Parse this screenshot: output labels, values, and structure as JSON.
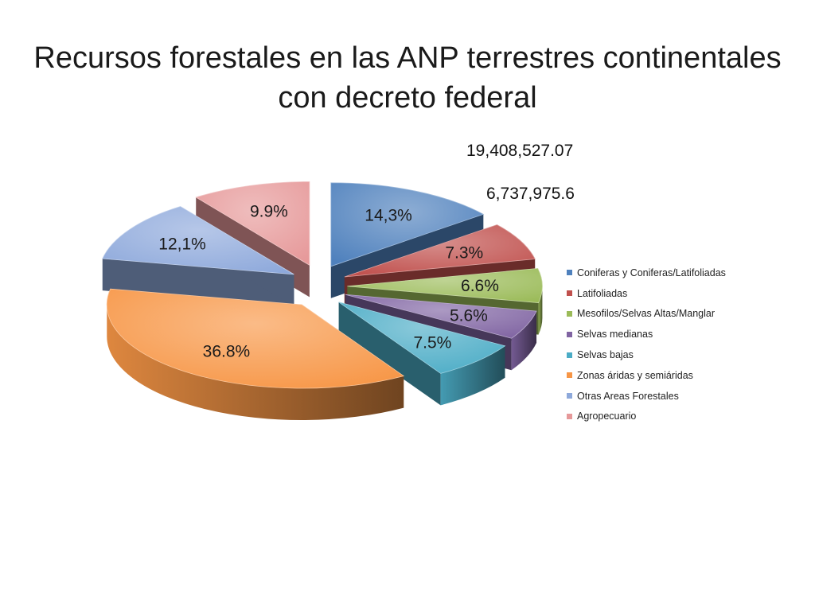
{
  "chart_data": {
    "type": "pie",
    "title": "Recursos forestales en las ANP terrestres continentales con decreto federal",
    "title_lines": [
      "Recursos forestales en las ANP terrestres continentales",
      "con decreto federal"
    ],
    "annotations": [
      "19,408,527.07",
      "6,737,975.6"
    ],
    "categories": [
      "Coniferas y Coniferas/Latifoliadas",
      "Latifoliadas",
      "Mesofilos/Selvas Altas/Manglar",
      "Selvas medianas",
      "Selvas bajas",
      "Zonas áridas y semiáridas",
      "Otras Areas Forestales",
      "Agropecuario"
    ],
    "values": [
      14.3,
      7.3,
      6.6,
      5.6,
      7.5,
      36.8,
      12.1,
      9.9
    ],
    "data_labels": [
      "14,3%",
      "7.3%",
      "6.6%",
      "5.6%",
      "7.5%",
      "36.8%",
      "12,1%",
      "9.9%"
    ],
    "colors": [
      "#4f81bd",
      "#c0504d",
      "#9bbb59",
      "#8064a2",
      "#4bacc6",
      "#f79646",
      "#8ea9db",
      "#e6999a"
    ],
    "legend_position": "right",
    "exploded": true
  }
}
